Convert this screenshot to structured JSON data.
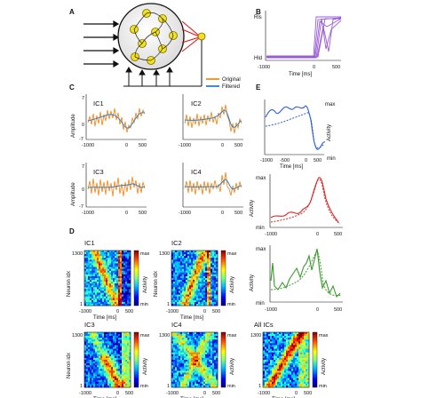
{
  "panel_labels": {
    "a": "A",
    "b": "B",
    "c": "C",
    "d": "D",
    "e": "E"
  },
  "panel_b": {
    "y_top": "Rls",
    "y_bottom": "Hld",
    "x_ticks": [
      "-1000",
      "0",
      "500"
    ],
    "x_label": "Time [ms]",
    "color": "#8a3fd1"
  },
  "legend": {
    "original_label": "Original",
    "filtered_label": "Filtered",
    "original_color": "#f28c1e",
    "filtered_color": "#2d7fd3"
  },
  "panel_c": {
    "y_label": "Amplitude",
    "y_ticks": [
      "7",
      "0",
      "-7"
    ],
    "x_ticks": [
      "-1000",
      "0",
      "500"
    ],
    "x_label": "Time [ms]",
    "ic_names": [
      "IC1",
      "IC2",
      "IC3",
      "IC4"
    ]
  },
  "panel_d": {
    "ic_names": [
      "IC1",
      "IC2",
      "IC3",
      "IC4",
      "All ICs"
    ],
    "y_label": "Neuron idx",
    "y_ticks": [
      "1300",
      "1"
    ],
    "x_ticks": [
      "-1000",
      "0",
      "500"
    ],
    "x_label": "Time [ms]",
    "cbar_max": "max",
    "cbar_min": "min",
    "cbar_label": "Activity"
  },
  "panel_e": {
    "y_label": "Activity",
    "y_top": "max",
    "y_bottom": "min",
    "x_ticks_first": [
      "-1000",
      "-500",
      "0",
      "500"
    ],
    "x_ticks": [
      "-1000",
      "0",
      "500"
    ],
    "x_label": "Time [ms]",
    "colors": [
      "#2d5fd3",
      "#d62828",
      "#3a9a2a"
    ]
  }
}
